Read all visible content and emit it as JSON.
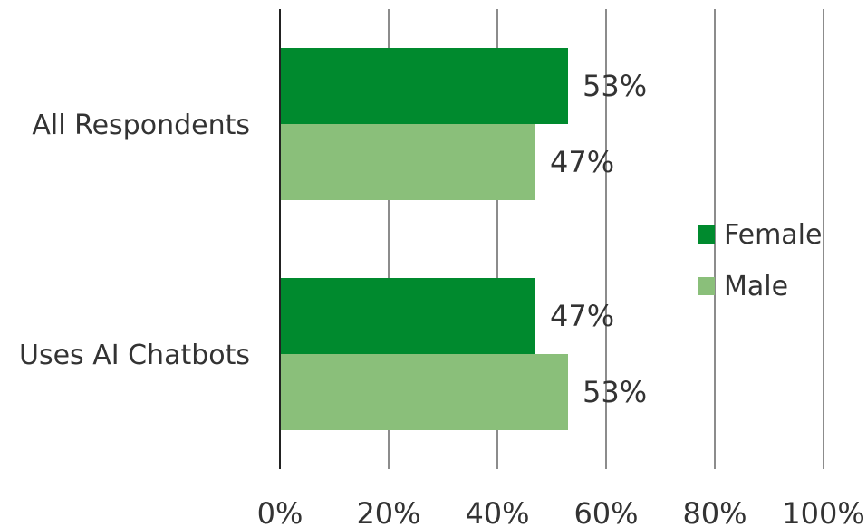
{
  "chart_data": {
    "type": "bar",
    "orientation": "horizontal",
    "categories": [
      "All Respondents",
      "Uses AI Chatbots"
    ],
    "series": [
      {
        "name": "Female",
        "values": [
          53,
          47
        ],
        "labels": [
          "53%",
          "47%"
        ],
        "color": "#008a2e"
      },
      {
        "name": "Male",
        "values": [
          47,
          53
        ],
        "labels": [
          "47%",
          "53%"
        ],
        "color": "#8abf7a"
      }
    ],
    "xlim": [
      0,
      100
    ],
    "x_ticks": [
      0,
      20,
      40,
      60,
      80,
      100
    ],
    "x_tick_labels": [
      "0%",
      "20%",
      "40%",
      "60%",
      "80%",
      "100%"
    ],
    "grid": "vertical",
    "legend": "right",
    "colors": {
      "axis": "#222222",
      "grid": "#8c8c8c",
      "text": "#333333"
    }
  }
}
